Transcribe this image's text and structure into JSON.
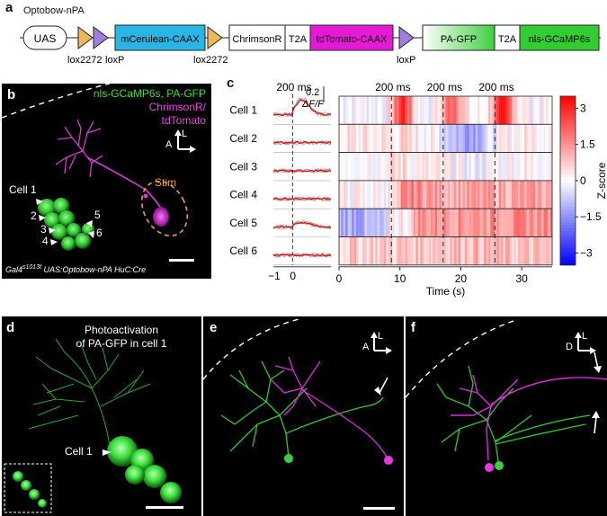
{
  "panel_a": {
    "label": "a",
    "construct_name": "Optobow-nPA",
    "elements": [
      {
        "name": "UAS",
        "color": "#ffffff"
      },
      {
        "name": "mCerulean-CAAX",
        "color": "#29b6e6"
      },
      {
        "name": "ChrimsonR",
        "color": "#ffffff"
      },
      {
        "name": "T2A",
        "color": "#ffffff"
      },
      {
        "name": "tdTomato-CAAX",
        "color": "#e619d6"
      },
      {
        "name": "PA-GFP",
        "color": "#66d966"
      },
      {
        "name": "T2A",
        "color": "#ffffff"
      },
      {
        "name": "nls-GCaMP6s",
        "color": "#33cc33"
      }
    ],
    "sites": [
      "lox2272",
      "loxP",
      "lox2272",
      "loxP"
    ]
  },
  "panel_b": {
    "label": "b",
    "legend_green": "nls-GCaMP6s, PA-GFP",
    "legend_magenta_1": "ChrimsonR/",
    "legend_magenta_2": "tdTomato",
    "stim_label": "Stim",
    "axis_vert": "L",
    "axis_horiz": "A",
    "cell_numbers": [
      "Cell 1",
      "2",
      "3",
      "4",
      "5",
      "6"
    ],
    "genotype_prefix": "Gal4",
    "genotype_sup": "s1013t",
    "genotype_rest": " UAS:Optobow-nPA HuC:Cre"
  },
  "panel_c": {
    "label": "c",
    "trace_time_label": "200 ms",
    "scale_value": "0.2",
    "scale_unit": "ΔF/F",
    "trace_x_ticks": [
      "−1",
      "0"
    ],
    "heatmap_stim_labels": [
      "200 ms",
      "200 ms",
      "200 ms"
    ],
    "heatmap_x_ticks": [
      "0",
      "10",
      "20",
      "30"
    ],
    "heatmap_xlabel": "Time (s)",
    "colorbar_label": "Z-score",
    "colorbar_ticks": [
      "3",
      "1.5",
      "0",
      "−1.5",
      "−3"
    ],
    "cells": [
      "Cell 1",
      "Cell 2",
      "Cell 3",
      "Cell 4",
      "Cell 5",
      "Cell 6"
    ]
  },
  "panel_d": {
    "label": "d",
    "title_1": "Photoactivation",
    "title_2": "of PA-GFP in cell 1",
    "cell_label": "Cell 1"
  },
  "panel_e": {
    "label": "e",
    "axis_vert": "L",
    "axis_horiz": "A"
  },
  "panel_f": {
    "label": "f",
    "axis_vert": "L",
    "axis_horiz": "D"
  },
  "chart_data": {
    "type": "heatmap",
    "title": "",
    "xlabel": "Time (s)",
    "ylabel": "",
    "xlim": [
      0,
      35
    ],
    "zlim": [
      -3.5,
      3.5
    ],
    "colorbar_label": "Z-score",
    "rows": [
      "Cell 1",
      "Cell 2",
      "Cell 3",
      "Cell 4",
      "Cell 5",
      "Cell 6"
    ],
    "stimulus_times_s": [
      8.6,
      17.1,
      25.6
    ],
    "stimulus_duration": "200 ms",
    "response_profile": {
      "Cell 1": "strong positive peaks at 9–12 s, 17–20 s, 25–29 s",
      "Cell 2": "weak; negative 18–27 s",
      "Cell 3": "weak; mostly near zero",
      "Cell 4": "positive from ~10 s onward",
      "Cell 5": "negative 0–8 s, positive after 12 s",
      "Cell 6": "mild positive throughout"
    }
  }
}
